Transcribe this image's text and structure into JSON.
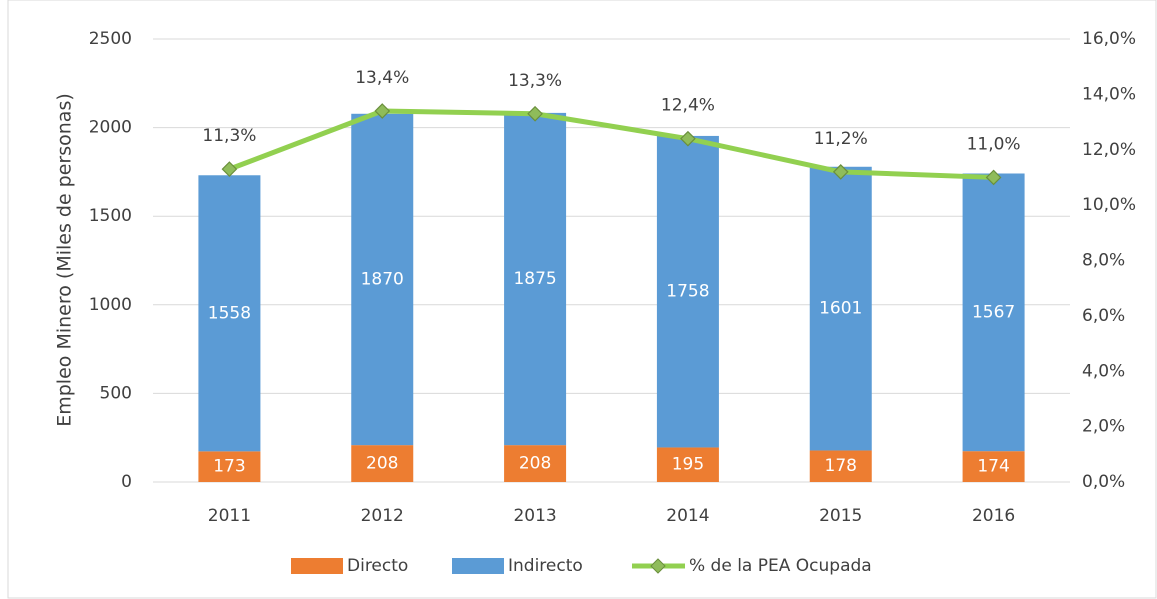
{
  "chart_data": {
    "type": "bar",
    "stacked": true,
    "y_label": "Empleo Minero (Miles de personas)",
    "categories": [
      "2011",
      "2012",
      "2013",
      "2014",
      "2015",
      "2016"
    ],
    "series": [
      {
        "name": "Directo",
        "color": "#ed7d31",
        "values": [
          173,
          208,
          208,
          195,
          178,
          174
        ]
      },
      {
        "name": "Indirecto",
        "color": "#5b9bd5",
        "values": [
          1558,
          1870,
          1875,
          1758,
          1601,
          1567
        ]
      },
      {
        "name": "% de la PEA Ocupada",
        "type": "line",
        "axis": "y2",
        "color": "#92d050",
        "marker_color": "#8fbc5a",
        "values": [
          11.3,
          13.4,
          13.3,
          12.4,
          11.2,
          11.0
        ],
        "value_labels": [
          "11,3%",
          "13,4%",
          "13,3%",
          "12,4%",
          "11,2%",
          "11,0%"
        ]
      }
    ],
    "ylim": [
      0,
      2500
    ],
    "yticks": [
      0,
      500,
      1000,
      1500,
      2000,
      2500
    ],
    "y2lim": [
      0,
      16
    ],
    "y2ticks": [
      {
        "value": 0,
        "label": "0,0%"
      },
      {
        "value": 2,
        "label": "2,0%"
      },
      {
        "value": 4,
        "label": "4,0%"
      },
      {
        "value": 6,
        "label": "6,0%"
      },
      {
        "value": 8,
        "label": "8,0%"
      },
      {
        "value": 10,
        "label": "10,0%"
      },
      {
        "value": 12,
        "label": "12,0%"
      },
      {
        "value": 14,
        "label": "14,0%"
      },
      {
        "value": 16,
        "label": "16,0%"
      }
    ],
    "grid": true,
    "legend": "bottom"
  }
}
